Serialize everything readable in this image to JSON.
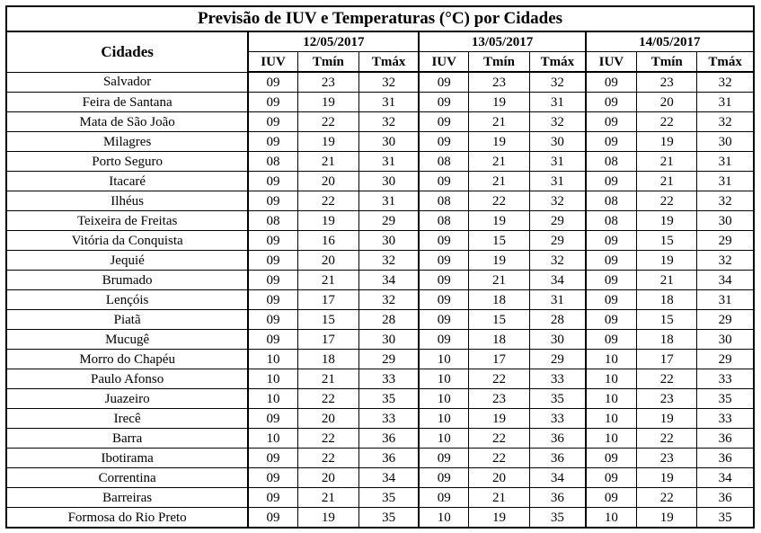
{
  "title": "Previsão de IUV e Temperaturas (°C) por Cidades",
  "table": {
    "city_header": "Cidades",
    "dates": [
      "12/05/2017",
      "13/05/2017",
      "14/05/2017"
    ],
    "columns": [
      "IUV",
      "Tmín",
      "Tmáx"
    ],
    "rows": [
      [
        "Salvador",
        "09",
        "23",
        "32",
        "09",
        "23",
        "32",
        "09",
        "23",
        "32"
      ],
      [
        "Feira de Santana",
        "09",
        "19",
        "31",
        "09",
        "19",
        "31",
        "09",
        "20",
        "31"
      ],
      [
        "Mata de São João",
        "09",
        "22",
        "32",
        "09",
        "21",
        "32",
        "09",
        "22",
        "32"
      ],
      [
        "Milagres",
        "09",
        "19",
        "30",
        "09",
        "19",
        "30",
        "09",
        "19",
        "30"
      ],
      [
        "Porto Seguro",
        "08",
        "21",
        "31",
        "08",
        "21",
        "31",
        "08",
        "21",
        "31"
      ],
      [
        "Itacaré",
        "09",
        "20",
        "30",
        "09",
        "21",
        "31",
        "09",
        "21",
        "31"
      ],
      [
        "Ilhéus",
        "09",
        "22",
        "31",
        "08",
        "22",
        "32",
        "08",
        "22",
        "32"
      ],
      [
        "Teixeira de Freitas",
        "08",
        "19",
        "29",
        "08",
        "19",
        "29",
        "08",
        "19",
        "30"
      ],
      [
        "Vitória da Conquista",
        "09",
        "16",
        "30",
        "09",
        "15",
        "29",
        "09",
        "15",
        "29"
      ],
      [
        "Jequié",
        "09",
        "20",
        "32",
        "09",
        "19",
        "32",
        "09",
        "19",
        "32"
      ],
      [
        "Brumado",
        "09",
        "21",
        "34",
        "09",
        "21",
        "34",
        "09",
        "21",
        "34"
      ],
      [
        "Lençóis",
        "09",
        "17",
        "32",
        "09",
        "18",
        "31",
        "09",
        "18",
        "31"
      ],
      [
        "Piatã",
        "09",
        "15",
        "28",
        "09",
        "15",
        "28",
        "09",
        "15",
        "29"
      ],
      [
        "Mucugê",
        "09",
        "17",
        "30",
        "09",
        "18",
        "30",
        "09",
        "18",
        "30"
      ],
      [
        "Morro do Chapéu",
        "10",
        "18",
        "29",
        "10",
        "17",
        "29",
        "10",
        "17",
        "29"
      ],
      [
        "Paulo Afonso",
        "10",
        "21",
        "33",
        "10",
        "22",
        "33",
        "10",
        "22",
        "33"
      ],
      [
        "Juazeiro",
        "10",
        "22",
        "35",
        "10",
        "23",
        "35",
        "10",
        "23",
        "35"
      ],
      [
        "Irecê",
        "09",
        "20",
        "33",
        "10",
        "19",
        "33",
        "10",
        "19",
        "33"
      ],
      [
        "Barra",
        "10",
        "22",
        "36",
        "10",
        "22",
        "36",
        "10",
        "22",
        "36"
      ],
      [
        "Ibotirama",
        "09",
        "22",
        "36",
        "09",
        "22",
        "36",
        "09",
        "23",
        "36"
      ],
      [
        "Correntina",
        "09",
        "20",
        "34",
        "09",
        "20",
        "34",
        "09",
        "19",
        "34"
      ],
      [
        "Barreiras",
        "09",
        "21",
        "35",
        "09",
        "21",
        "36",
        "09",
        "22",
        "36"
      ],
      [
        "Formosa do Rio Preto",
        "09",
        "19",
        "35",
        "10",
        "19",
        "35",
        "10",
        "19",
        "35"
      ]
    ]
  }
}
